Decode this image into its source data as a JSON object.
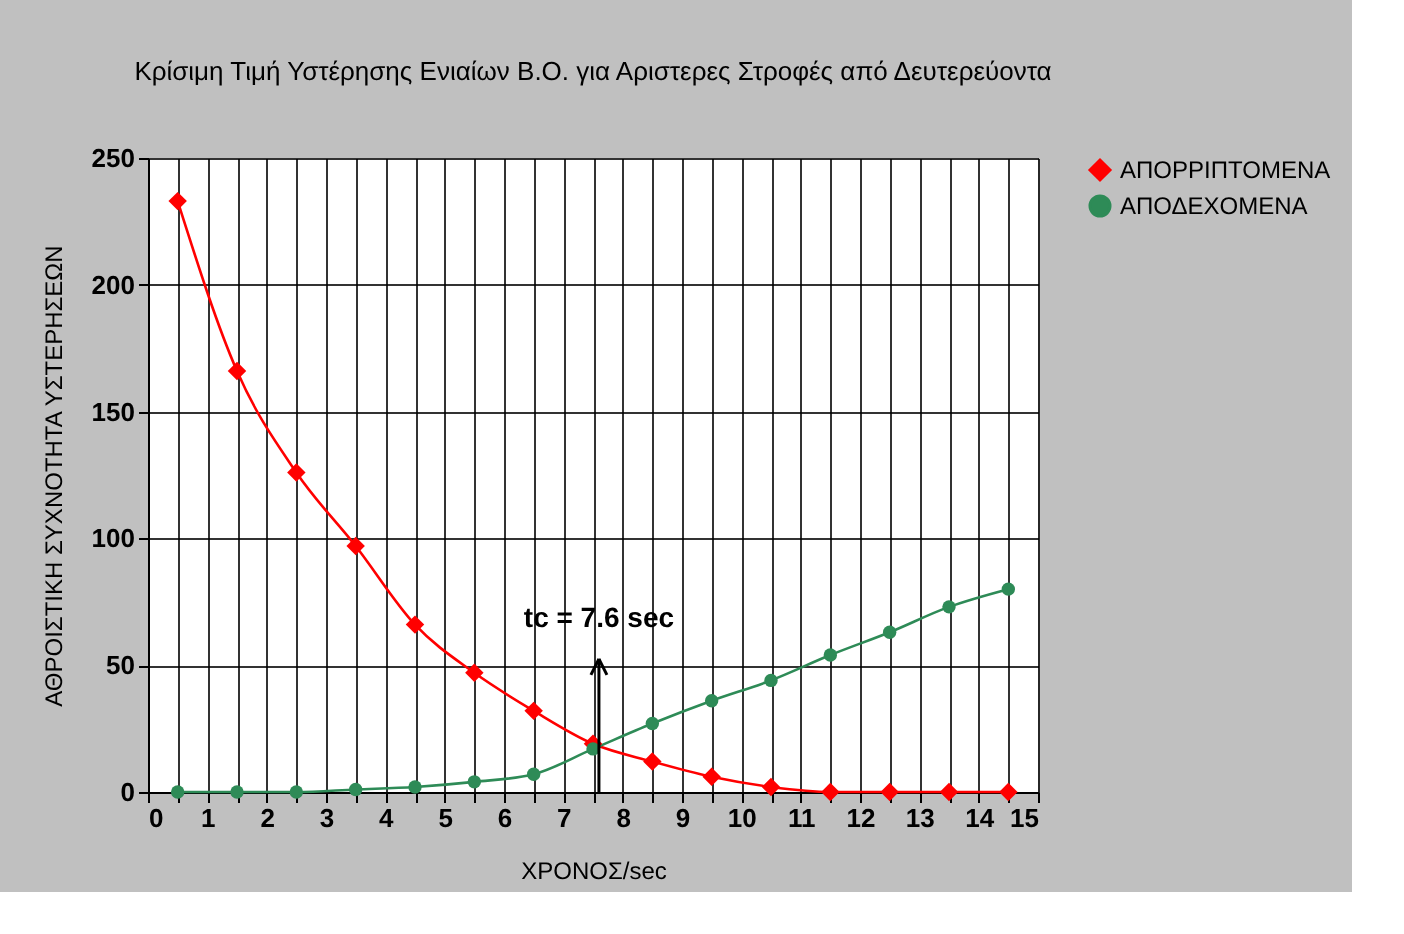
{
  "chart_data": {
    "type": "line",
    "title": "Κρίσιμη Τιμή Υστέρησης Ενιαίων Β.Ο. για Αριστερες Στροφές από Δευτερεύοντα",
    "xlabel": "ΧΡΟΝΟΣ/sec",
    "ylabel": "ΑΘΡΟΙΣΤΙΚΗ ΣΥΧΝΟΤΗΤΑ ΥΣΤΕΡΗΣΕΩΝ",
    "x": [
      0.5,
      1.5,
      2.5,
      3.5,
      4.5,
      5.5,
      6.5,
      7.5,
      8.5,
      9.5,
      10.5,
      11.5,
      12.5,
      13.5,
      14.5
    ],
    "series": [
      {
        "name": "ΑΠΟΡΡΙΠΤΟΜΕΝΑ",
        "color": "#ff0000",
        "marker": "diamond",
        "values": [
          233,
          166,
          126,
          97,
          66,
          47,
          32,
          19,
          12,
          6,
          2,
          0,
          0,
          0,
          0
        ]
      },
      {
        "name": "ΑΠΟΔΕΧΟΜΕΝΑ",
        "color": "#2e8b57",
        "marker": "circle",
        "values": [
          0,
          0,
          0,
          1,
          2,
          4,
          7,
          17,
          27,
          36,
          44,
          54,
          63,
          73,
          80
        ]
      }
    ],
    "xlim": [
      0,
      15
    ],
    "ylim": [
      0,
      250
    ],
    "xticks": [
      0,
      {
        "value": 0.5,
        "label": null
      },
      1,
      {
        "value": 1.5,
        "label": null
      },
      2,
      {
        "value": 2.5,
        "label": null
      },
      3,
      {
        "value": 3.5,
        "label": null
      },
      4,
      {
        "value": 4.5,
        "label": null
      },
      5,
      {
        "value": 5.5,
        "label": null
      },
      6,
      {
        "value": 6.5,
        "label": null
      },
      7,
      {
        "value": 7.5,
        "label": null
      },
      8,
      {
        "value": 8.5,
        "label": null
      },
      9,
      {
        "value": 9.5,
        "label": null
      },
      10,
      {
        "value": 10.5,
        "label": null
      },
      11,
      {
        "value": 11.5,
        "label": null
      },
      12,
      {
        "value": 12.5,
        "label": null
      },
      13,
      {
        "value": 13.5,
        "label": null
      },
      14,
      {
        "value": 14.5,
        "label": null
      },
      15
    ],
    "yticks": [
      0,
      50,
      100,
      150,
      200,
      250
    ],
    "ref_lines": [
      {
        "axis": "x",
        "value": 7.6,
        "label": "tc = 7.6 sec",
        "color": "#000000"
      }
    ],
    "grid": true,
    "legend": "right",
    "line_style": "solid"
  }
}
